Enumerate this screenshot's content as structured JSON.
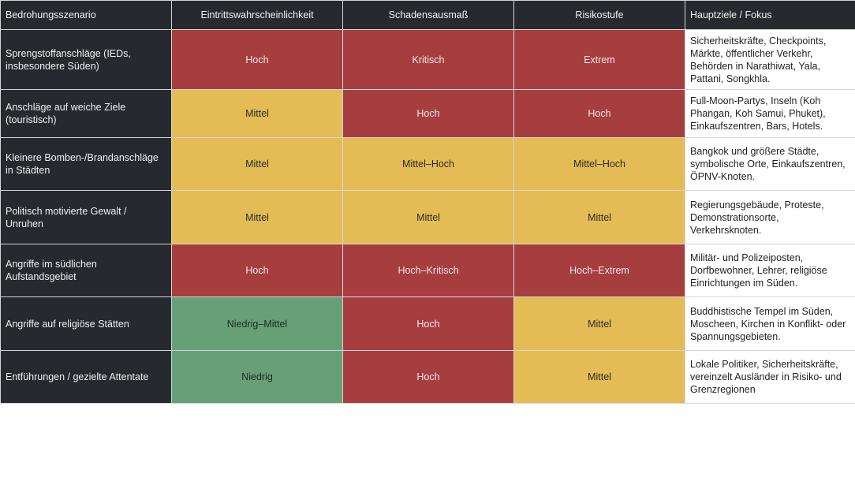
{
  "table": {
    "headers": [
      "Bedrohungsszenario",
      "Eintrittswahrscheinlichkeit",
      "Schadensausmaß",
      "Risikostufe",
      "Hauptziele / Fokus"
    ],
    "level_colors": {
      "red": "#a63e40",
      "yellow": "#e4bc55",
      "green": "#67a077",
      "dark": "#262a2e"
    },
    "rows": [
      {
        "scenario": "Sprengstoffanschläge (IEDs, insbesondere Süden)",
        "likelihood": "Hoch",
        "likelihood_color": "red",
        "impact": "Kritisch",
        "impact_color": "red",
        "risk": "Extrem",
        "risk_color": "red",
        "focus": "Sicherheitskräfte, Checkpoints, Märkte, öffentlicher Verkehr, Behörden in Narathiwat, Yala, Pattani, Songkhla."
      },
      {
        "scenario": "Anschläge auf weiche Ziele (touristisch)",
        "likelihood": "Mittel",
        "likelihood_color": "yellow",
        "impact": "Hoch",
        "impact_color": "red",
        "risk": "Hoch",
        "risk_color": "red",
        "focus": "Full-Moon-Partys, Inseln (Koh Phangan, Koh Samui, Phuket), Einkaufszentren, Bars, Hotels."
      },
      {
        "scenario": "Kleinere Bomben-/Brandanschläge in Städten",
        "likelihood": "Mittel",
        "likelihood_color": "yellow",
        "impact": "Mittel–Hoch",
        "impact_color": "yellow",
        "risk": "Mittel–Hoch",
        "risk_color": "yellow",
        "focus": "Bangkok und größere Städte, symbolische Orte, Einkaufszentren, ÖPNV-Knoten."
      },
      {
        "scenario": "Politisch motivierte Gewalt / Unruhen",
        "likelihood": "Mittel",
        "likelihood_color": "yellow",
        "impact": "Mittel",
        "impact_color": "yellow",
        "risk": "Mittel",
        "risk_color": "yellow",
        "focus": "Regierungsgebäude, Proteste, Demonstrationsorte, Verkehrsknoten."
      },
      {
        "scenario": "Angriffe im südlichen Aufstandsgebiet",
        "likelihood": "Hoch",
        "likelihood_color": "red",
        "impact": "Hoch–Kritisch",
        "impact_color": "red",
        "risk": "Hoch–Extrem",
        "risk_color": "red",
        "focus": "Militär- und Polizeiposten, Dorfbewohner, Lehrer, religiöse Einrichtungen im Süden."
      },
      {
        "scenario": "Angriffe auf religiöse Stätten",
        "likelihood": "Niedrig–Mittel",
        "likelihood_color": "green",
        "impact": "Hoch",
        "impact_color": "red",
        "risk": "Mittel",
        "risk_color": "yellow",
        "focus": "Buddhistische Tempel im Süden, Moscheen, Kirchen in Konflikt- oder Spannungsgebieten."
      },
      {
        "scenario": "Entführungen / gezielte Attentate",
        "likelihood": "Niedrig",
        "likelihood_color": "green",
        "impact": "Hoch",
        "impact_color": "red",
        "risk": "Mittel",
        "risk_color": "yellow",
        "focus": "Lokale Politiker, Sicherheitskräfte, vereinzelt Ausländer in Risiko- und Grenzregionen"
      }
    ]
  }
}
